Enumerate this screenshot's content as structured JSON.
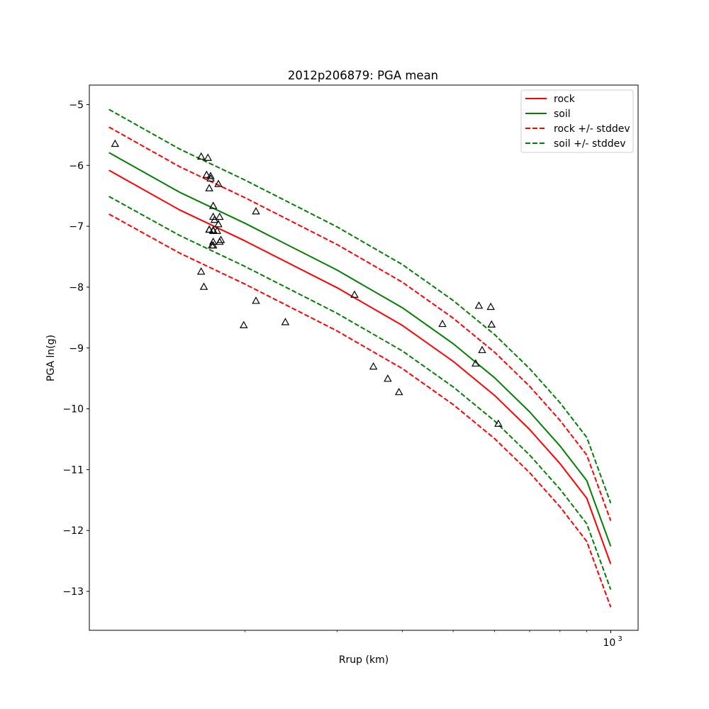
{
  "chart_data": {
    "type": "scatter",
    "title": "2012p206879: PGA mean",
    "xlabel": "Rrup (km)",
    "ylabel": "PGA ln(g)",
    "x_scale": "log",
    "xlim": [
      100.9,
      1128
    ],
    "ylim": [
      -13.64,
      -4.68
    ],
    "y_ticks": [
      -13,
      -12,
      -11,
      -10,
      -9,
      -8,
      -7,
      -6,
      -5
    ],
    "y_tick_labels": [
      "−13",
      "−12",
      "−11",
      "−10",
      "−9",
      "−8",
      "−7",
      "−6",
      "−5"
    ],
    "x_ticks": [
      1000
    ],
    "x_tick_labels_base": [
      "10"
    ],
    "x_tick_labels_exp": [
      "3"
    ],
    "x_minor_ticks": [
      200,
      300,
      400,
      500,
      600,
      700,
      800,
      900
    ],
    "grid": false,
    "legend_position": "top-right",
    "series": [
      {
        "name": "rock",
        "kind": "line",
        "color": "#ff0000",
        "dash": "solid",
        "x": [
          110,
          150,
          200,
          300,
          400,
          500,
          600,
          700,
          800,
          900,
          1000
        ],
        "y": [
          -6.08,
          -6.73,
          -7.24,
          -8.01,
          -8.63,
          -9.22,
          -9.78,
          -10.34,
          -10.9,
          -11.47,
          -12.55
        ]
      },
      {
        "name": "soil",
        "kind": "line",
        "color": "#008000",
        "dash": "solid",
        "x": [
          110,
          150,
          200,
          300,
          400,
          500,
          600,
          700,
          800,
          900,
          1000
        ],
        "y": [
          -5.79,
          -6.44,
          -6.95,
          -7.72,
          -8.34,
          -8.93,
          -9.49,
          -10.05,
          -10.61,
          -11.18,
          -12.26
        ]
      },
      {
        "name": "rock +/- stddev",
        "kind": "line",
        "color": "#ff0000",
        "dash": "dashed",
        "x": [
          110,
          150,
          200,
          300,
          400,
          500,
          600,
          700,
          800,
          900,
          1000
        ],
        "y": [
          -5.37,
          -6.02,
          -6.53,
          -7.3,
          -7.92,
          -8.51,
          -9.07,
          -9.63,
          -10.19,
          -10.76,
          -11.84
        ]
      },
      {
        "name": "",
        "kind": "line",
        "color": "#ff0000",
        "dash": "dashed",
        "x": [
          110,
          150,
          200,
          300,
          400,
          500,
          600,
          700,
          800,
          900,
          1000
        ],
        "y": [
          -6.8,
          -7.44,
          -7.95,
          -8.72,
          -9.34,
          -9.93,
          -10.49,
          -11.05,
          -11.61,
          -12.18,
          -13.26
        ]
      },
      {
        "name": "soil +/- stddev",
        "kind": "line",
        "color": "#008000",
        "dash": "dashed",
        "x": [
          110,
          150,
          200,
          300,
          400,
          500,
          600,
          700,
          800,
          900,
          1000
        ],
        "y": [
          -5.08,
          -5.73,
          -6.24,
          -7.01,
          -7.63,
          -8.22,
          -8.78,
          -9.34,
          -9.9,
          -10.47,
          -11.55
        ]
      },
      {
        "name": "",
        "kind": "line",
        "color": "#008000",
        "dash": "dashed",
        "x": [
          110,
          150,
          200,
          300,
          400,
          500,
          600,
          700,
          800,
          900,
          1000
        ],
        "y": [
          -6.51,
          -7.15,
          -7.66,
          -8.43,
          -9.05,
          -9.64,
          -10.2,
          -10.76,
          -11.32,
          -11.89,
          -12.97
        ]
      },
      {
        "name": "",
        "kind": "scatter",
        "marker": "triangle-open",
        "color": "#000000",
        "x": [
          113,
          165,
          167,
          165,
          170,
          172,
          169,
          172,
          171,
          178,
          174,
          174,
          179,
          175,
          178,
          174,
          177,
          174,
          180,
          174,
          179,
          173,
          174,
          171,
          171,
          210,
          210,
          199,
          239,
          324,
          394,
          375,
          352,
          477,
          568,
          552,
          560,
          592,
          590,
          610
        ],
        "y": [
          -5.65,
          -7.75,
          -8.0,
          -5.86,
          -5.88,
          -6.22,
          -6.16,
          -6.18,
          -6.38,
          -6.31,
          -6.67,
          -6.85,
          -6.85,
          -6.9,
          -6.97,
          -7.08,
          -7.08,
          -7.07,
          -7.23,
          -7.26,
          -7.26,
          -7.32,
          -7.32,
          -7.06,
          -7.06,
          -6.76,
          -8.23,
          -8.63,
          -8.58,
          -8.13,
          -9.73,
          -9.51,
          -9.31,
          -8.61,
          -9.04,
          -9.26,
          -8.31,
          -8.62,
          -8.33,
          -10.25
        ]
      }
    ]
  }
}
